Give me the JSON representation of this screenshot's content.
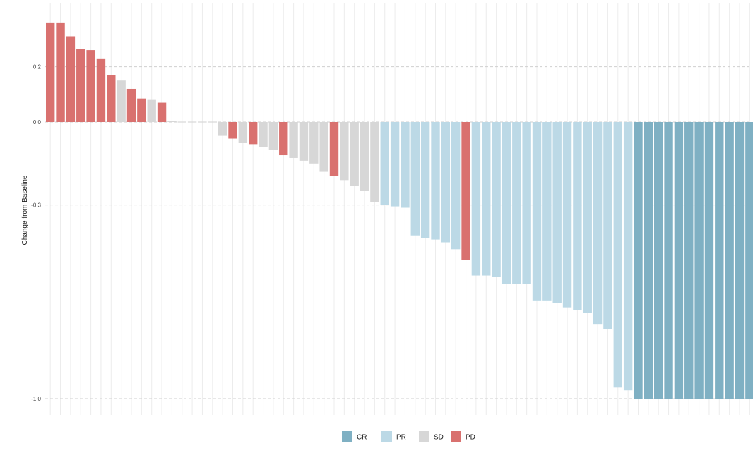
{
  "chart_data": {
    "type": "bar",
    "title": "",
    "xlabel": "",
    "ylabel": "Change from Baseline",
    "ylim": [
      -1.05,
      0.36
    ],
    "yticks": [
      {
        "value": 0.2,
        "label": "0.2"
      },
      {
        "value": 0.0,
        "label": "0.0"
      },
      {
        "value": -0.3,
        "label": "-0.3"
      },
      {
        "value": -1.0,
        "label": "-1.0"
      }
    ],
    "grid": true,
    "legend": {
      "position": "bottom",
      "entries": [
        {
          "key": "CR",
          "label": "CR",
          "color": "#7fb0c3"
        },
        {
          "key": "PR",
          "label": "PR",
          "color": "#bcd9e6"
        },
        {
          "key": "SD",
          "label": "SD",
          "color": "#d7d7d7"
        },
        {
          "key": "PD",
          "label": "PD",
          "color": "#d9716f"
        }
      ]
    },
    "bars": [
      {
        "value": 0.36,
        "category": "PD"
      },
      {
        "value": 0.36,
        "category": "PD"
      },
      {
        "value": 0.31,
        "category": "PD"
      },
      {
        "value": 0.265,
        "category": "PD"
      },
      {
        "value": 0.26,
        "category": "PD"
      },
      {
        "value": 0.23,
        "category": "PD"
      },
      {
        "value": 0.17,
        "category": "PD"
      },
      {
        "value": 0.15,
        "category": "SD"
      },
      {
        "value": 0.12,
        "category": "PD"
      },
      {
        "value": 0.085,
        "category": "PD"
      },
      {
        "value": 0.08,
        "category": "SD"
      },
      {
        "value": 0.07,
        "category": "PD"
      },
      {
        "value": 0.004,
        "category": "SD"
      },
      {
        "value": 0.002,
        "category": "SD"
      },
      {
        "value": 0.0,
        "category": "SD"
      },
      {
        "value": 0.0,
        "category": "SD"
      },
      {
        "value": 0.0,
        "category": "SD"
      },
      {
        "value": -0.05,
        "category": "SD"
      },
      {
        "value": -0.06,
        "category": "PD"
      },
      {
        "value": -0.075,
        "category": "SD"
      },
      {
        "value": -0.08,
        "category": "PD"
      },
      {
        "value": -0.09,
        "category": "SD"
      },
      {
        "value": -0.1,
        "category": "SD"
      },
      {
        "value": -0.12,
        "category": "PD"
      },
      {
        "value": -0.13,
        "category": "SD"
      },
      {
        "value": -0.14,
        "category": "SD"
      },
      {
        "value": -0.15,
        "category": "SD"
      },
      {
        "value": -0.18,
        "category": "SD"
      },
      {
        "value": -0.195,
        "category": "PD"
      },
      {
        "value": -0.21,
        "category": "SD"
      },
      {
        "value": -0.23,
        "category": "SD"
      },
      {
        "value": -0.25,
        "category": "SD"
      },
      {
        "value": -0.29,
        "category": "SD"
      },
      {
        "value": -0.3,
        "category": "PR"
      },
      {
        "value": -0.305,
        "category": "PR"
      },
      {
        "value": -0.31,
        "category": "PR"
      },
      {
        "value": -0.41,
        "category": "PR"
      },
      {
        "value": -0.42,
        "category": "PR"
      },
      {
        "value": -0.425,
        "category": "PR"
      },
      {
        "value": -0.435,
        "category": "PR"
      },
      {
        "value": -0.46,
        "category": "PR"
      },
      {
        "value": -0.5,
        "category": "PD"
      },
      {
        "value": -0.555,
        "category": "PR"
      },
      {
        "value": -0.555,
        "category": "PR"
      },
      {
        "value": -0.56,
        "category": "PR"
      },
      {
        "value": -0.585,
        "category": "PR"
      },
      {
        "value": -0.585,
        "category": "PR"
      },
      {
        "value": -0.585,
        "category": "PR"
      },
      {
        "value": -0.645,
        "category": "PR"
      },
      {
        "value": -0.645,
        "category": "PR"
      },
      {
        "value": -0.655,
        "category": "PR"
      },
      {
        "value": -0.67,
        "category": "PR"
      },
      {
        "value": -0.68,
        "category": "PR"
      },
      {
        "value": -0.69,
        "category": "PR"
      },
      {
        "value": -0.73,
        "category": "PR"
      },
      {
        "value": -0.75,
        "category": "PR"
      },
      {
        "value": -0.96,
        "category": "PR"
      },
      {
        "value": -0.97,
        "category": "PR"
      },
      {
        "value": -1.0,
        "category": "CR"
      },
      {
        "value": -1.0,
        "category": "CR"
      },
      {
        "value": -1.0,
        "category": "CR"
      },
      {
        "value": -1.0,
        "category": "CR"
      },
      {
        "value": -1.0,
        "category": "CR"
      },
      {
        "value": -1.0,
        "category": "CR"
      },
      {
        "value": -1.0,
        "category": "CR"
      },
      {
        "value": -1.0,
        "category": "CR"
      },
      {
        "value": -1.0,
        "category": "CR"
      },
      {
        "value": -1.0,
        "category": "CR"
      },
      {
        "value": -1.0,
        "category": "CR"
      },
      {
        "value": -1.0,
        "category": "CR"
      }
    ]
  }
}
